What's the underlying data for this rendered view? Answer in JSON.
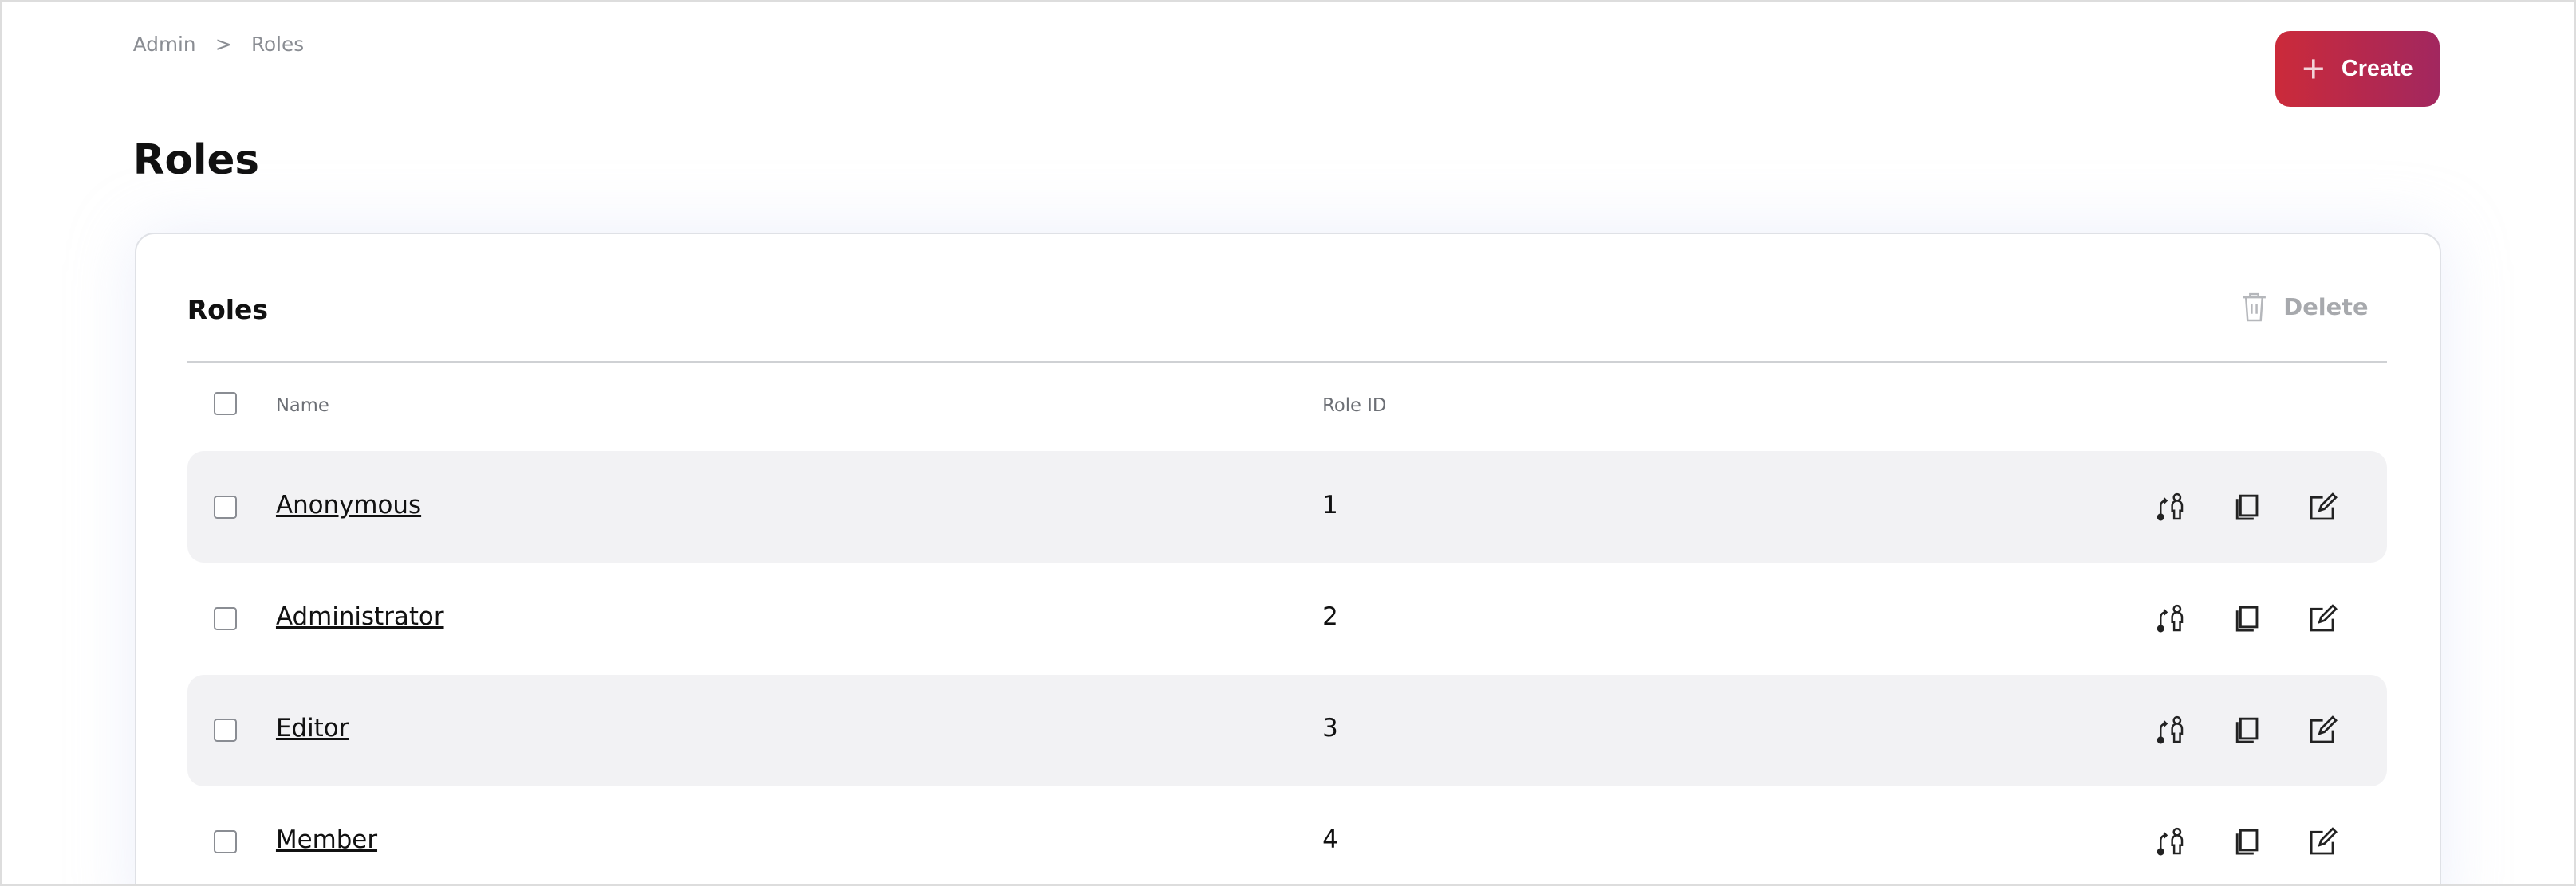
{
  "breadcrumb": {
    "items": [
      "Admin",
      "Roles"
    ],
    "separator": ">"
  },
  "header": {
    "title": "Roles",
    "create_label": "Create"
  },
  "card": {
    "title": "Roles",
    "delete_label": "Delete"
  },
  "table": {
    "columns": [
      "Name",
      "Role ID"
    ],
    "rows": [
      {
        "name": "Anonymous",
        "id": "1"
      },
      {
        "name": "Administrator",
        "id": "2"
      },
      {
        "name": "Editor",
        "id": "3"
      },
      {
        "name": "Member",
        "id": "4"
      }
    ],
    "row_actions": [
      "assign-user-icon",
      "copy-icon",
      "edit-icon"
    ]
  },
  "colors": {
    "accent_start": "#cb2a3a",
    "accent_end": "#a2275f",
    "row_alt": "#f2f2f4"
  }
}
